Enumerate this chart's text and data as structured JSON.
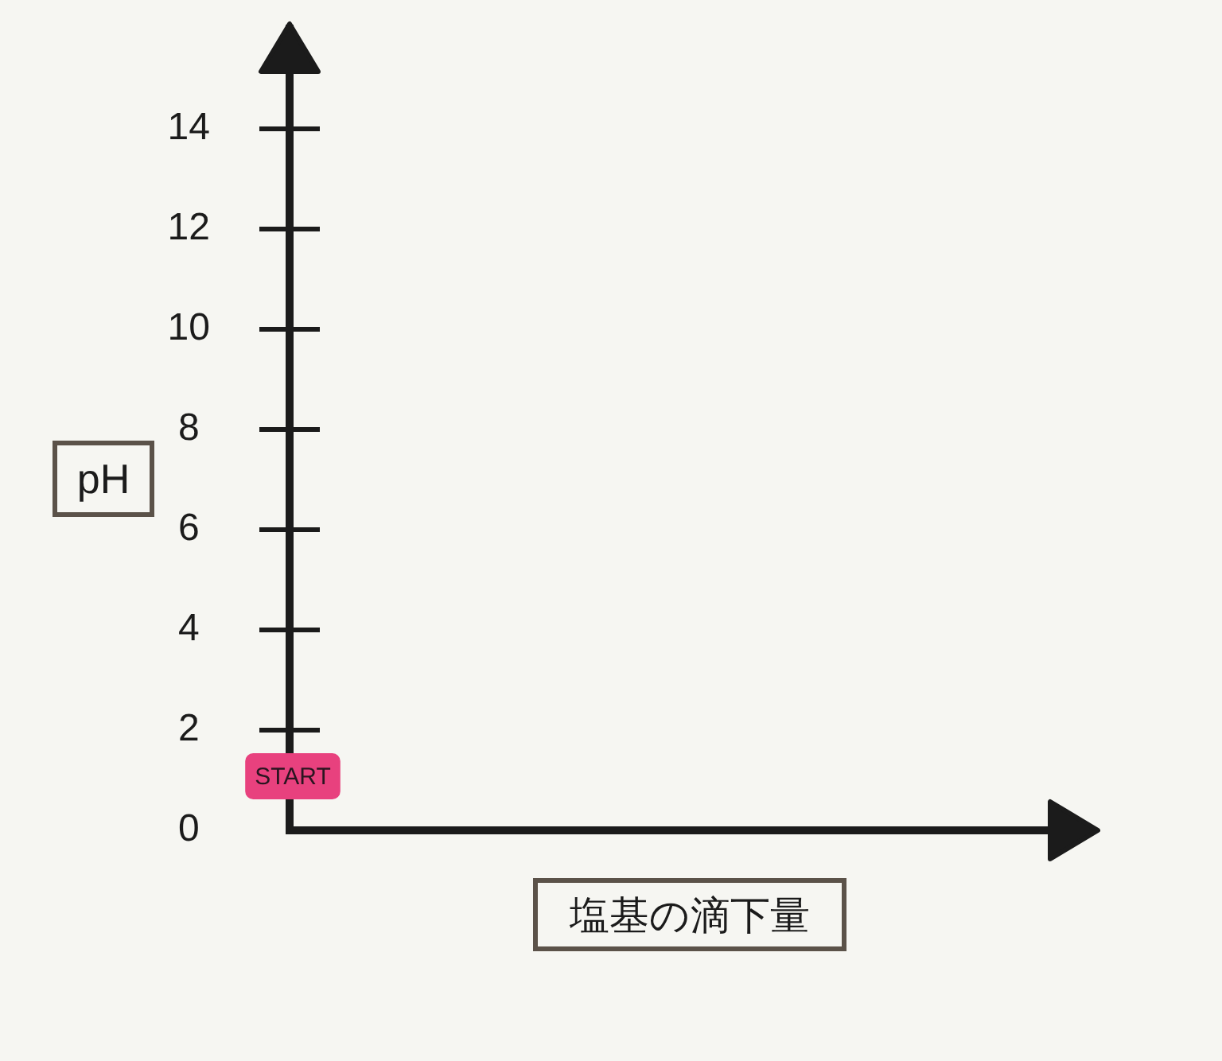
{
  "chart_data": {
    "type": "scatter",
    "xlabel": "塩基の滴下量",
    "ylabel": "pH",
    "categories": [
      null
    ],
    "ylim": [
      0,
      16
    ],
    "yticks": [
      0,
      2,
      4,
      6,
      8,
      10,
      12,
      14
    ],
    "tick_labels": "y",
    "annotations": [
      "START"
    ]
  }
}
